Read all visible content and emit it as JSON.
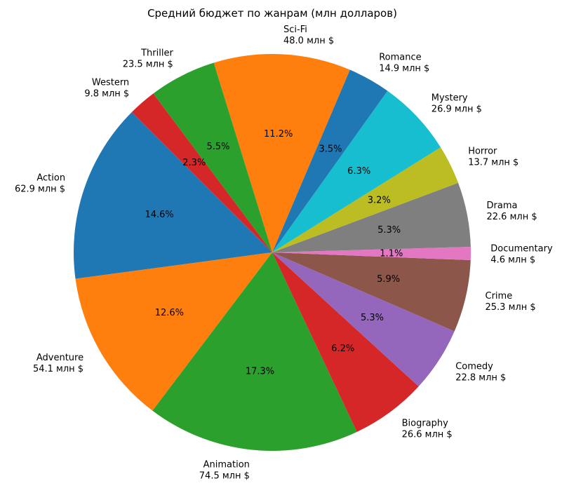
{
  "chart_data": {
    "type": "pie",
    "title": "Средний бюджет по жанрам (млн долларов)",
    "unit_suffix": "млн $",
    "start_angle_deg": 135,
    "direction": "counterclockwise",
    "slices": [
      {
        "name": "Action",
        "value": 62.9,
        "value_label": "62.9 млн $",
        "pct_label": "14.6%",
        "color": "#1f77b4"
      },
      {
        "name": "Adventure",
        "value": 54.1,
        "value_label": "54.1 млн $",
        "pct_label": "12.6%",
        "color": "#ff7f0e"
      },
      {
        "name": "Animation",
        "value": 74.5,
        "value_label": "74.5 млн $",
        "pct_label": "17.3%",
        "color": "#2ca02c"
      },
      {
        "name": "Biography",
        "value": 26.6,
        "value_label": "26.6 млн $",
        "pct_label": "6.2%",
        "color": "#d62728"
      },
      {
        "name": "Comedy",
        "value": 22.8,
        "value_label": "22.8 млн $",
        "pct_label": "5.3%",
        "color": "#9467bd"
      },
      {
        "name": "Crime",
        "value": 25.3,
        "value_label": "25.3 млн $",
        "pct_label": "5.9%",
        "color": "#8c564b"
      },
      {
        "name": "Documentary",
        "value": 4.6,
        "value_label": "4.6 млн $",
        "pct_label": "1.1%",
        "color": "#e377c2"
      },
      {
        "name": "Drama",
        "value": 22.6,
        "value_label": "22.6 млн $",
        "pct_label": "5.3%",
        "color": "#7f7f7f"
      },
      {
        "name": "Horror",
        "value": 13.7,
        "value_label": "13.7 млн $",
        "pct_label": "3.2%",
        "color": "#bcbd22"
      },
      {
        "name": "Mystery",
        "value": 26.9,
        "value_label": "26.9 млн $",
        "pct_label": "6.3%",
        "color": "#17becf"
      },
      {
        "name": "Romance",
        "value": 14.9,
        "value_label": "14.9 млн $",
        "pct_label": "3.5%",
        "color": "#1f77b4"
      },
      {
        "name": "Sci-Fi",
        "value": 48.0,
        "value_label": "48.0 млн $",
        "pct_label": "11.2%",
        "color": "#ff7f0e"
      },
      {
        "name": "Thriller",
        "value": 23.5,
        "value_label": "23.5 млн $",
        "pct_label": "5.5%",
        "color": "#2ca02c"
      },
      {
        "name": "Western",
        "value": 9.8,
        "value_label": "9.8 млн $",
        "pct_label": "2.3%",
        "color": "#d62728"
      }
    ]
  }
}
